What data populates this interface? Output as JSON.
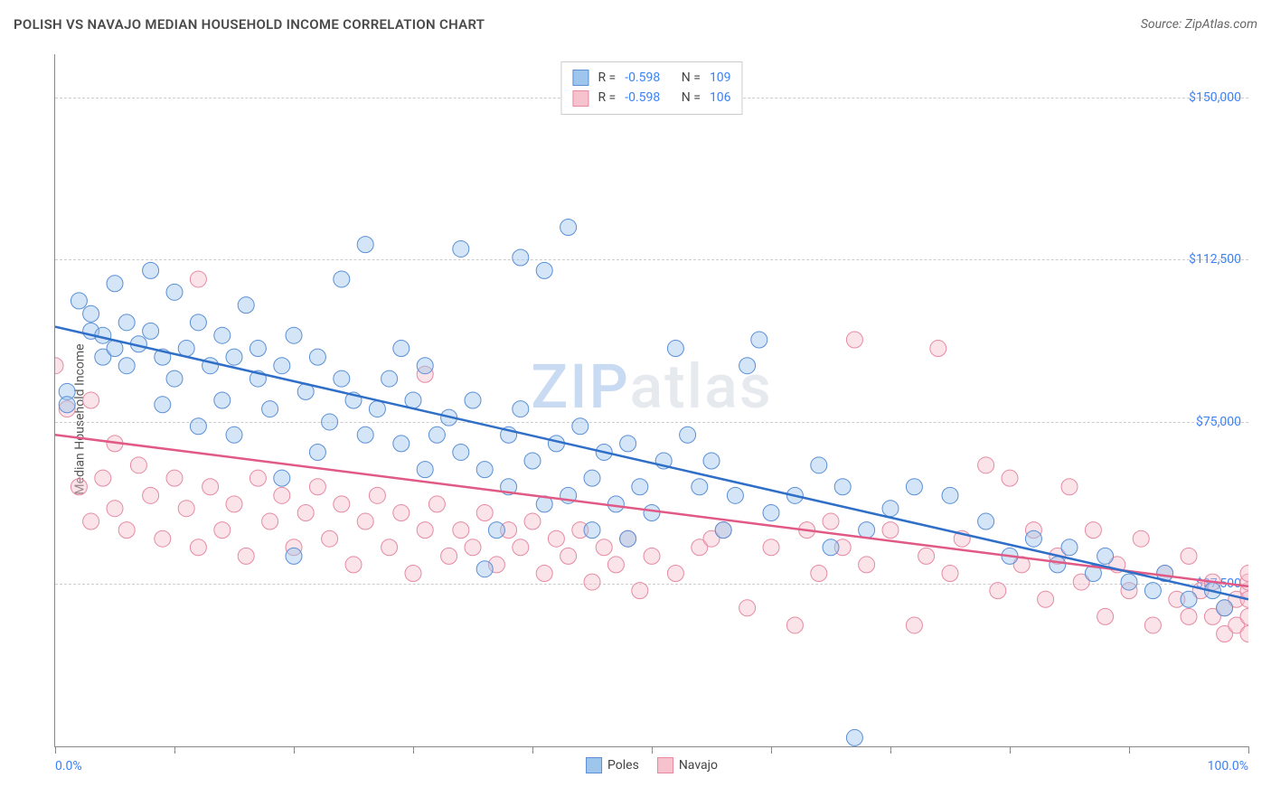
{
  "header": {
    "title": "POLISH VS NAVAJO MEDIAN HOUSEHOLD INCOME CORRELATION CHART",
    "source": "Source: ZipAtlas.com"
  },
  "watermark": {
    "zip": "ZIP",
    "atlas": "atlas"
  },
  "chart": {
    "type": "scatter",
    "ylabel": "Median Household Income",
    "background_color": "#ffffff",
    "grid_color": "#cccccc",
    "axis_color": "#888888",
    "xlim": [
      0,
      100
    ],
    "ylim": [
      0,
      160000
    ],
    "x_tick_positions": [
      0,
      10,
      20,
      30,
      40,
      50,
      60,
      70,
      80,
      90,
      100
    ],
    "x_min_label": "0.0%",
    "x_max_label": "100.0%",
    "y_gridlines": [
      {
        "value": 37500,
        "label": "$37,500"
      },
      {
        "value": 75000,
        "label": "$75,000"
      },
      {
        "value": 112500,
        "label": "$112,500"
      },
      {
        "value": 150000,
        "label": "$150,000"
      }
    ],
    "marker_radius": 9,
    "marker_opacity": 0.45,
    "line_width": 2.5,
    "series": {
      "poles": {
        "label": "Poles",
        "fill_color": "#9ec5ec",
        "stroke_color": "#5b8fd6",
        "line_color": "#2f6fc8",
        "stats": {
          "R_label": "R =",
          "R_value": "-0.598",
          "N_label": "N =",
          "N_value": "109"
        },
        "trendline": {
          "x1": 0,
          "y1": 97000,
          "x2": 100,
          "y2": 34000
        },
        "points": [
          [
            1,
            82000
          ],
          [
            1,
            79000
          ],
          [
            2,
            103000
          ],
          [
            3,
            96000
          ],
          [
            3,
            100000
          ],
          [
            4,
            95000
          ],
          [
            4,
            90000
          ],
          [
            5,
            107000
          ],
          [
            5,
            92000
          ],
          [
            6,
            98000
          ],
          [
            6,
            88000
          ],
          [
            7,
            93000
          ],
          [
            8,
            110000
          ],
          [
            8,
            96000
          ],
          [
            9,
            90000
          ],
          [
            9,
            79000
          ],
          [
            10,
            105000
          ],
          [
            10,
            85000
          ],
          [
            11,
            92000
          ],
          [
            12,
            98000
          ],
          [
            12,
            74000
          ],
          [
            13,
            88000
          ],
          [
            14,
            95000
          ],
          [
            14,
            80000
          ],
          [
            15,
            90000
          ],
          [
            15,
            72000
          ],
          [
            16,
            102000
          ],
          [
            17,
            85000
          ],
          [
            17,
            92000
          ],
          [
            18,
            78000
          ],
          [
            19,
            88000
          ],
          [
            19,
            62000
          ],
          [
            20,
            95000
          ],
          [
            20,
            44000
          ],
          [
            21,
            82000
          ],
          [
            22,
            90000
          ],
          [
            22,
            68000
          ],
          [
            23,
            75000
          ],
          [
            24,
            85000
          ],
          [
            24,
            108000
          ],
          [
            25,
            80000
          ],
          [
            26,
            116000
          ],
          [
            26,
            72000
          ],
          [
            27,
            78000
          ],
          [
            28,
            85000
          ],
          [
            29,
            70000
          ],
          [
            29,
            92000
          ],
          [
            30,
            80000
          ],
          [
            31,
            64000
          ],
          [
            31,
            88000
          ],
          [
            32,
            72000
          ],
          [
            33,
            76000
          ],
          [
            34,
            115000
          ],
          [
            34,
            68000
          ],
          [
            35,
            80000
          ],
          [
            36,
            64000
          ],
          [
            36,
            41000
          ],
          [
            37,
            50000
          ],
          [
            38,
            72000
          ],
          [
            38,
            60000
          ],
          [
            39,
            113000
          ],
          [
            39,
            78000
          ],
          [
            40,
            66000
          ],
          [
            41,
            110000
          ],
          [
            41,
            56000
          ],
          [
            42,
            70000
          ],
          [
            43,
            120000
          ],
          [
            43,
            58000
          ],
          [
            44,
            74000
          ],
          [
            45,
            62000
          ],
          [
            45,
            50000
          ],
          [
            46,
            68000
          ],
          [
            47,
            56000
          ],
          [
            48,
            70000
          ],
          [
            48,
            48000
          ],
          [
            49,
            60000
          ],
          [
            50,
            54000
          ],
          [
            51,
            66000
          ],
          [
            52,
            92000
          ],
          [
            53,
            72000
          ],
          [
            54,
            60000
          ],
          [
            55,
            66000
          ],
          [
            56,
            50000
          ],
          [
            57,
            58000
          ],
          [
            58,
            88000
          ],
          [
            59,
            94000
          ],
          [
            60,
            54000
          ],
          [
            62,
            58000
          ],
          [
            64,
            65000
          ],
          [
            65,
            46000
          ],
          [
            66,
            60000
          ],
          [
            67,
            2000
          ],
          [
            68,
            50000
          ],
          [
            70,
            55000
          ],
          [
            72,
            60000
          ],
          [
            75,
            58000
          ],
          [
            78,
            52000
          ],
          [
            80,
            44000
          ],
          [
            82,
            48000
          ],
          [
            84,
            42000
          ],
          [
            85,
            46000
          ],
          [
            87,
            40000
          ],
          [
            88,
            44000
          ],
          [
            90,
            38000
          ],
          [
            92,
            36000
          ],
          [
            93,
            40000
          ],
          [
            95,
            34000
          ],
          [
            97,
            36000
          ],
          [
            98,
            32000
          ]
        ]
      },
      "navajo": {
        "label": "Navajo",
        "fill_color": "#f5c2ce",
        "stroke_color": "#e68aa2",
        "line_color": "#e05a85",
        "stats": {
          "R_label": "R =",
          "R_value": "-0.598",
          "N_label": "N =",
          "N_value": "106"
        },
        "trendline": {
          "x1": 0,
          "y1": 72000,
          "x2": 100,
          "y2": 37000
        },
        "points": [
          [
            0,
            88000
          ],
          [
            1,
            78000
          ],
          [
            2,
            60000
          ],
          [
            3,
            80000
          ],
          [
            3,
            52000
          ],
          [
            4,
            62000
          ],
          [
            5,
            55000
          ],
          [
            5,
            70000
          ],
          [
            6,
            50000
          ],
          [
            7,
            65000
          ],
          [
            8,
            58000
          ],
          [
            9,
            48000
          ],
          [
            10,
            62000
          ],
          [
            11,
            55000
          ],
          [
            12,
            108000
          ],
          [
            12,
            46000
          ],
          [
            13,
            60000
          ],
          [
            14,
            50000
          ],
          [
            15,
            56000
          ],
          [
            16,
            44000
          ],
          [
            17,
            62000
          ],
          [
            18,
            52000
          ],
          [
            19,
            58000
          ],
          [
            20,
            46000
          ],
          [
            21,
            54000
          ],
          [
            22,
            60000
          ],
          [
            23,
            48000
          ],
          [
            24,
            56000
          ],
          [
            25,
            42000
          ],
          [
            26,
            52000
          ],
          [
            27,
            58000
          ],
          [
            28,
            46000
          ],
          [
            29,
            54000
          ],
          [
            30,
            40000
          ],
          [
            31,
            86000
          ],
          [
            31,
            50000
          ],
          [
            32,
            56000
          ],
          [
            33,
            44000
          ],
          [
            34,
            50000
          ],
          [
            35,
            46000
          ],
          [
            36,
            54000
          ],
          [
            37,
            42000
          ],
          [
            38,
            50000
          ],
          [
            39,
            46000
          ],
          [
            40,
            52000
          ],
          [
            41,
            40000
          ],
          [
            42,
            48000
          ],
          [
            43,
            44000
          ],
          [
            44,
            50000
          ],
          [
            45,
            38000
          ],
          [
            46,
            46000
          ],
          [
            47,
            42000
          ],
          [
            48,
            48000
          ],
          [
            49,
            36000
          ],
          [
            50,
            44000
          ],
          [
            52,
            40000
          ],
          [
            54,
            46000
          ],
          [
            55,
            48000
          ],
          [
            56,
            50000
          ],
          [
            58,
            32000
          ],
          [
            60,
            46000
          ],
          [
            62,
            28000
          ],
          [
            63,
            50000
          ],
          [
            64,
            40000
          ],
          [
            65,
            52000
          ],
          [
            66,
            46000
          ],
          [
            67,
            94000
          ],
          [
            68,
            42000
          ],
          [
            70,
            50000
          ],
          [
            72,
            28000
          ],
          [
            73,
            44000
          ],
          [
            74,
            92000
          ],
          [
            75,
            40000
          ],
          [
            76,
            48000
          ],
          [
            78,
            65000
          ],
          [
            79,
            36000
          ],
          [
            80,
            62000
          ],
          [
            81,
            42000
          ],
          [
            82,
            50000
          ],
          [
            83,
            34000
          ],
          [
            84,
            44000
          ],
          [
            85,
            60000
          ],
          [
            86,
            38000
          ],
          [
            87,
            50000
          ],
          [
            88,
            30000
          ],
          [
            89,
            42000
          ],
          [
            90,
            36000
          ],
          [
            91,
            48000
          ],
          [
            92,
            28000
          ],
          [
            93,
            40000
          ],
          [
            94,
            34000
          ],
          [
            95,
            30000
          ],
          [
            95,
            44000
          ],
          [
            96,
            36000
          ],
          [
            97,
            30000
          ],
          [
            97,
            38000
          ],
          [
            98,
            32000
          ],
          [
            98,
            26000
          ],
          [
            99,
            34000
          ],
          [
            99,
            28000
          ],
          [
            100,
            36000
          ],
          [
            100,
            30000
          ],
          [
            100,
            38000
          ],
          [
            100,
            26000
          ],
          [
            100,
            34000
          ],
          [
            100,
            40000
          ]
        ]
      }
    }
  }
}
